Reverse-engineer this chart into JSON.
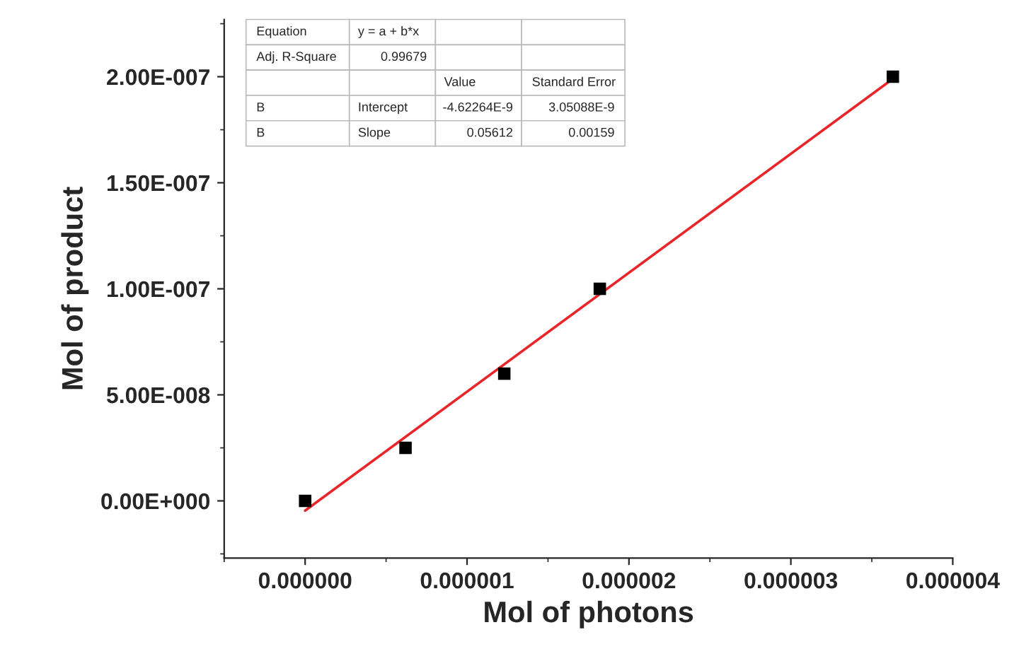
{
  "chart_data": {
    "type": "scatter",
    "xlabel": "Mol of photons",
    "ylabel": "Mol of product",
    "xlim": [
      -5e-07,
      4e-06
    ],
    "ylim": [
      -2.7e-08,
      2.27e-07
    ],
    "xticks": [
      {
        "value": 0,
        "label": "0.000000"
      },
      {
        "value": 1e-06,
        "label": "0.000001"
      },
      {
        "value": 2e-06,
        "label": "0.000002"
      },
      {
        "value": 3e-06,
        "label": "0.000003"
      },
      {
        "value": 4e-06,
        "label": "0.000004"
      }
    ],
    "yticks": [
      {
        "value": 0,
        "label": "0.00E+000"
      },
      {
        "value": 5e-08,
        "label": "5.00E-008"
      },
      {
        "value": 1e-07,
        "label": "1.00E-007"
      },
      {
        "value": 1.5e-07,
        "label": "1.50E-007"
      },
      {
        "value": 2e-07,
        "label": "2.00E-007"
      }
    ],
    "grid": false,
    "legend": false,
    "series": [
      {
        "color": "#000000",
        "marker": "square",
        "x": [
          0,
          6.2e-07,
          1.23e-06,
          1.82e-06,
          3.63e-06
        ],
        "values": [
          0,
          2.5e-08,
          6e-08,
          1e-07,
          2e-07
        ]
      },
      {
        "type": "line",
        "color": "#e8262a",
        "line_style": "solid",
        "marker": "none",
        "x": [
          0,
          3.63e-06
        ],
        "values": [
          -4.6e-09,
          1.99e-07
        ]
      }
    ],
    "annotations": [
      "Equation",
      "y = a + b*x",
      "Adj. R-Square",
      "0.99679",
      "Value",
      "Standard Error",
      "B",
      "Intercept",
      "-4.62264E-9",
      "3.05088E-9",
      "B",
      "Slope",
      "0.05612",
      "0.00159"
    ]
  }
}
